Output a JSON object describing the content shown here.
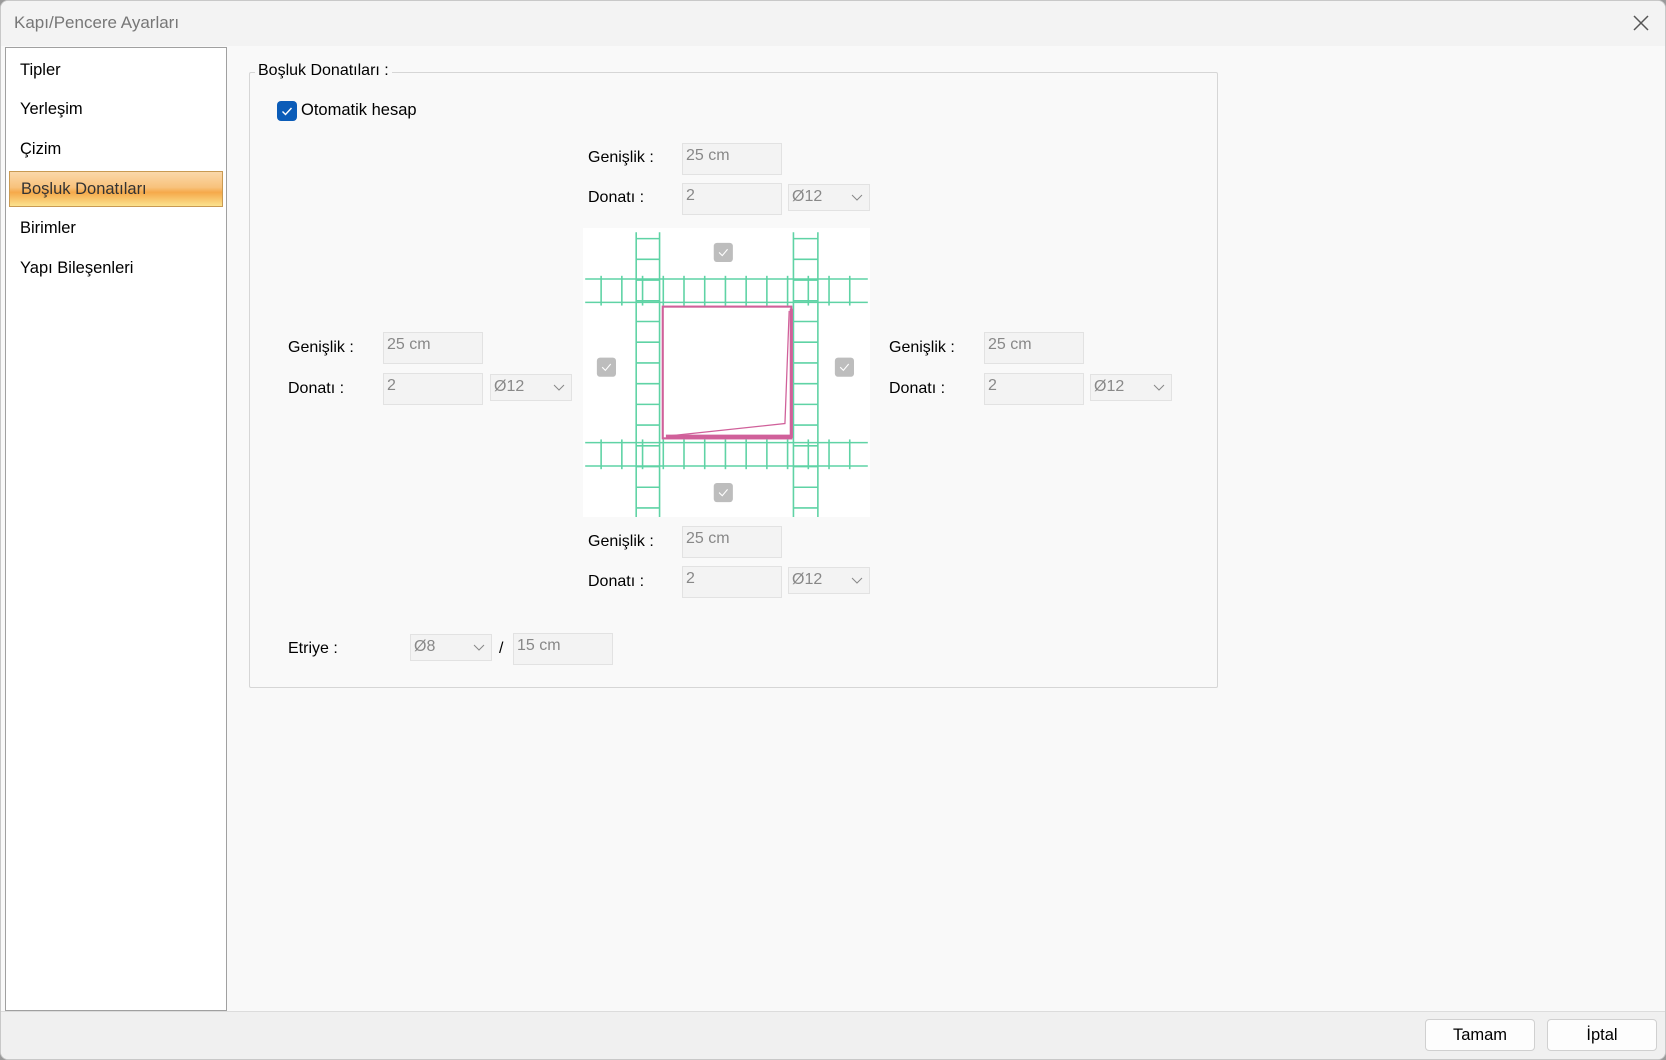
{
  "window": {
    "title": "Kapı/Pencere Ayarları",
    "close_icon": "close-icon"
  },
  "sidebar": {
    "items": [
      {
        "label": "Tipler",
        "selected": false
      },
      {
        "label": "Yerleşim",
        "selected": false
      },
      {
        "label": "Çizim",
        "selected": false
      },
      {
        "label": "Boşluk Donatıları",
        "selected": true
      },
      {
        "label": "Birimler",
        "selected": false
      },
      {
        "label": "Yapı Bileşenleri",
        "selected": false
      }
    ]
  },
  "group": {
    "title": "Boşluk Donatıları :",
    "auto_calc": {
      "label": "Otomatik hesap",
      "checked": true
    },
    "top": {
      "width_label": "Genişlik :",
      "width_value": "25 cm",
      "rebar_label": "Donatı :",
      "rebar_count": "2",
      "rebar_diameter": "Ø12"
    },
    "left": {
      "width_label": "Genişlik :",
      "width_value": "25 cm",
      "rebar_label": "Donatı :",
      "rebar_count": "2",
      "rebar_diameter": "Ø12"
    },
    "right": {
      "width_label": "Genişlik :",
      "width_value": "25 cm",
      "rebar_label": "Donatı :",
      "rebar_count": "2",
      "rebar_diameter": "Ø12"
    },
    "bottom": {
      "width_label": "Genişlik :",
      "width_value": "25 cm",
      "rebar_label": "Donatı :",
      "rebar_count": "2",
      "rebar_diameter": "Ø12"
    },
    "stirrup": {
      "label": "Etriye :",
      "diameter": "Ø8",
      "separator": "/",
      "spacing": "15 cm"
    },
    "diagram": {
      "rebar_color": "#5fd3a5",
      "opening_color": "#d0609a",
      "side_checks": {
        "top": true,
        "left": true,
        "right": true,
        "bottom": true
      }
    }
  },
  "footer": {
    "ok_label": "Tamam",
    "cancel_label": "İptal"
  }
}
